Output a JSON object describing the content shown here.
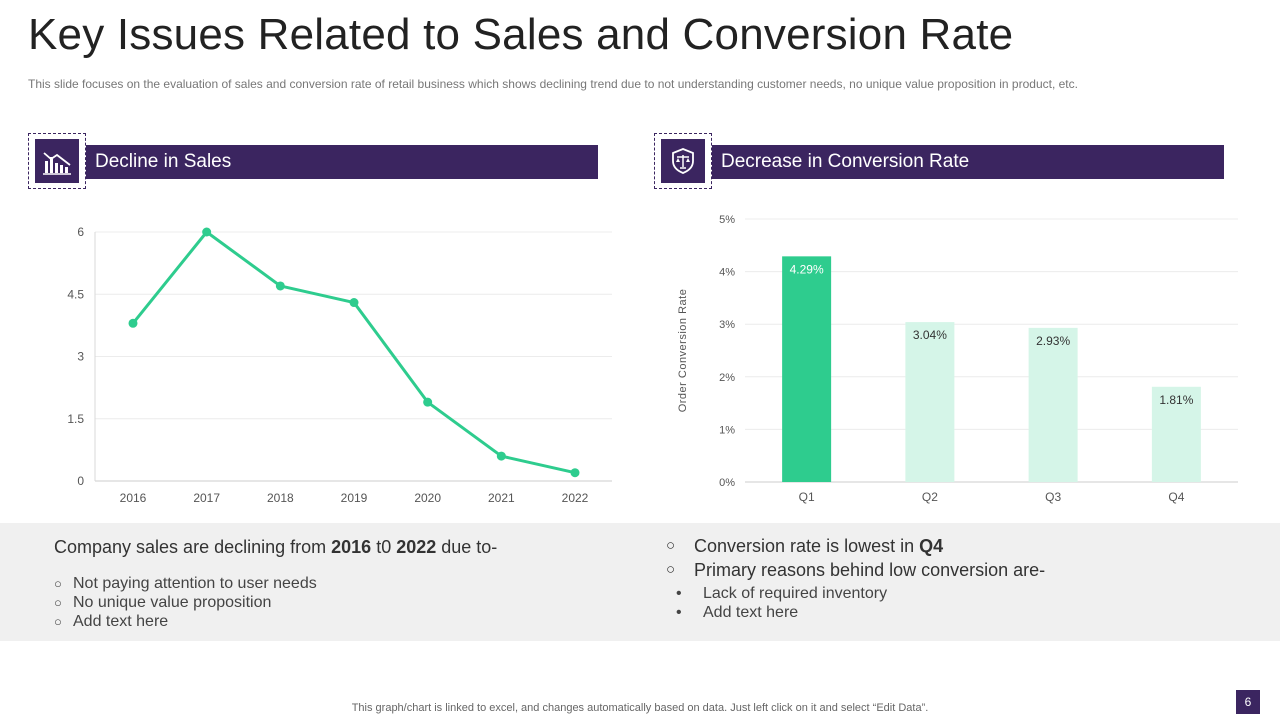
{
  "title": "Key Issues Related to Sales and Conversion Rate",
  "subtitle": "This slide focuses on the evaluation  of sales and conversion  rate of retail business which shows declining trend due to not understanding  customer needs, no unique value  proposition  in product, etc.",
  "sections": {
    "left_title": "Decline in Sales",
    "right_title": "Decrease in Conversion Rate",
    "left_icon": "declining-chart-icon",
    "right_icon": "scales-shield-icon"
  },
  "colors": {
    "brand": "#3b2560",
    "line": "#2ecc8e",
    "bar_highlight": "#2ecc8e",
    "bar_light": "#d5f5e8"
  },
  "chart_data": [
    {
      "type": "line",
      "x": [
        "2016",
        "2017",
        "2018",
        "2019",
        "2020",
        "2021",
        "2022"
      ],
      "y": [
        3.8,
        6.0,
        4.7,
        4.3,
        1.9,
        0.6,
        0.2
      ],
      "yticks": [
        "0",
        "1.5",
        "3",
        "4.5",
        "6"
      ],
      "ylim": [
        0,
        6
      ],
      "grid": true,
      "title": "",
      "xlabel": "",
      "ylabel": ""
    },
    {
      "type": "bar",
      "categories": [
        "Q1",
        "Q2",
        "Q3",
        "Q4"
      ],
      "values": [
        4.29,
        3.04,
        2.93,
        1.81
      ],
      "data_labels": [
        "4.29%",
        "3.04%",
        "2.93%",
        "1.81%"
      ],
      "yticks": [
        "0%",
        "1%",
        "2%",
        "3%",
        "4%",
        "5%"
      ],
      "ylim": [
        0,
        5
      ],
      "ylabel": "Order  Conversion  Rate",
      "grid": true,
      "title": "",
      "xlabel": ""
    }
  ],
  "left_text": {
    "heading_prefix": "Company sales are declining from ",
    "heading_year1": "2016",
    "heading_mid": " t0 ",
    "heading_year2": "2022",
    "heading_suffix": " due to-",
    "items": [
      "Not paying attention to user needs",
      "No unique value proposition",
      "Add text here"
    ]
  },
  "right_text": {
    "item1_prefix": "Conversion rate is lowest in ",
    "item1_bold": "Q4",
    "item2": "Primary reasons behind low conversion are-",
    "bullets": [
      "Lack of required inventory",
      "Add text here"
    ]
  },
  "footer": "This graph/chart is linked to excel,  and changes automatically based on data. Just left click on it and select “Edit Data”.",
  "page_number": "6"
}
